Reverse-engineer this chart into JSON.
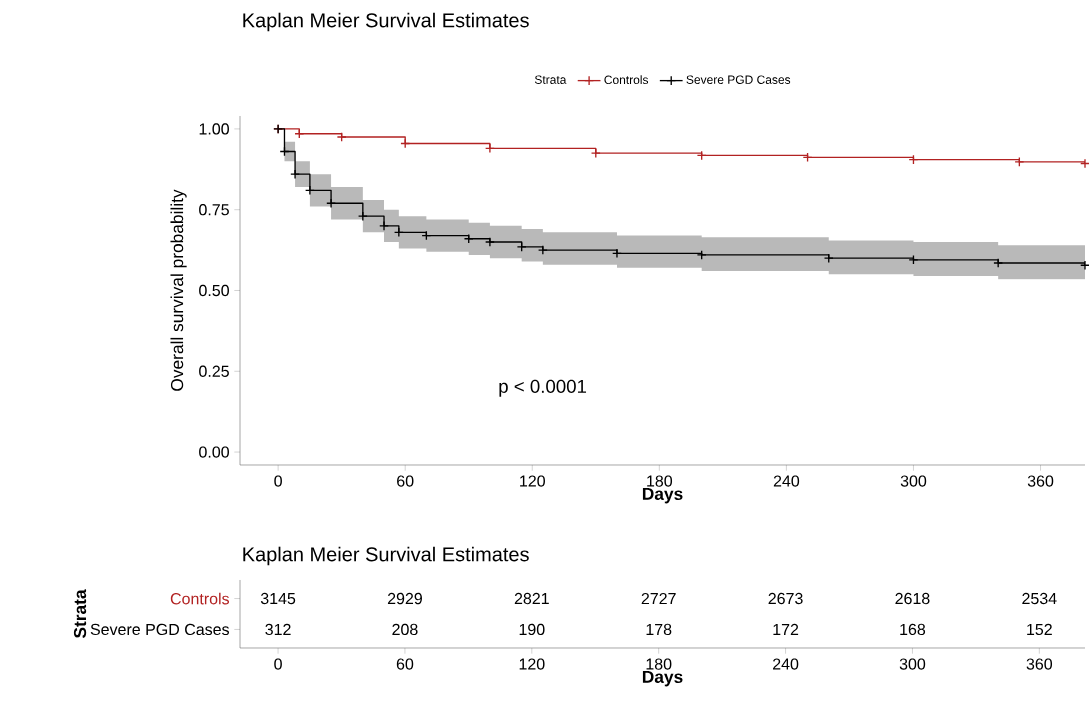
{
  "chart_data": [
    {
      "type": "step",
      "title": "Kaplan Meier Survival Estimates",
      "xlabel": "Days",
      "ylabel": "Overall survival probability",
      "legend_title": "Strata",
      "legend": "top",
      "grid": false,
      "marker": "cross",
      "line_style": "solid",
      "xlim": [
        -18,
        381
      ],
      "ylim": [
        -0.04,
        1.04
      ],
      "xticks": [
        0,
        60,
        120,
        180,
        240,
        300,
        360
      ],
      "yticks": [
        {
          "value": 0,
          "label": "0.00"
        },
        {
          "value": 0.25,
          "label": "0.25"
        },
        {
          "value": 0.5,
          "label": "0.50"
        },
        {
          "value": 0.75,
          "label": "0.75"
        },
        {
          "value": 1,
          "label": "1.00"
        }
      ],
      "annotations": [
        "p < 0.0001"
      ],
      "series": [
        {
          "name": "Controls",
          "color": "#b22222",
          "x": [
            0,
            10,
            30,
            60,
            100,
            150,
            200,
            250,
            300,
            350,
            381
          ],
          "values": [
            1.0,
            0.985,
            0.975,
            0.955,
            0.94,
            0.925,
            0.918,
            0.912,
            0.905,
            0.898,
            0.893
          ]
        },
        {
          "name": "Severe PGD Cases",
          "color": "#000000",
          "x": [
            0,
            3,
            8,
            15,
            25,
            40,
            50,
            57,
            70,
            90,
            100,
            115,
            125,
            160,
            200,
            260,
            300,
            340,
            381
          ],
          "values": [
            1.0,
            0.93,
            0.86,
            0.81,
            0.77,
            0.73,
            0.7,
            0.68,
            0.67,
            0.66,
            0.65,
            0.635,
            0.625,
            0.615,
            0.61,
            0.6,
            0.595,
            0.585,
            0.578
          ],
          "upper": [
            1.0,
            0.96,
            0.9,
            0.86,
            0.82,
            0.78,
            0.75,
            0.73,
            0.72,
            0.71,
            0.7,
            0.69,
            0.68,
            0.67,
            0.665,
            0.655,
            0.65,
            0.64,
            0.64
          ],
          "lower": [
            1.0,
            0.9,
            0.82,
            0.76,
            0.72,
            0.68,
            0.65,
            0.63,
            0.62,
            0.61,
            0.6,
            0.59,
            0.58,
            0.57,
            0.56,
            0.55,
            0.545,
            0.535,
            0.535
          ]
        }
      ]
    },
    {
      "type": "heatmap",
      "title": "Kaplan Meier Survival Estimates",
      "xlabel": "Days",
      "ylabel": "Strata",
      "data_labels": true,
      "categories": [
        "0",
        "60",
        "120",
        "180",
        "240",
        "300",
        "360"
      ],
      "y_categories": [
        "Controls",
        "Severe PGD Cases"
      ],
      "cells": [
        [
          3145,
          2929,
          2821,
          2727,
          2673,
          2618,
          2534
        ],
        [
          312,
          208,
          190,
          178,
          172,
          168,
          152
        ]
      ]
    }
  ]
}
